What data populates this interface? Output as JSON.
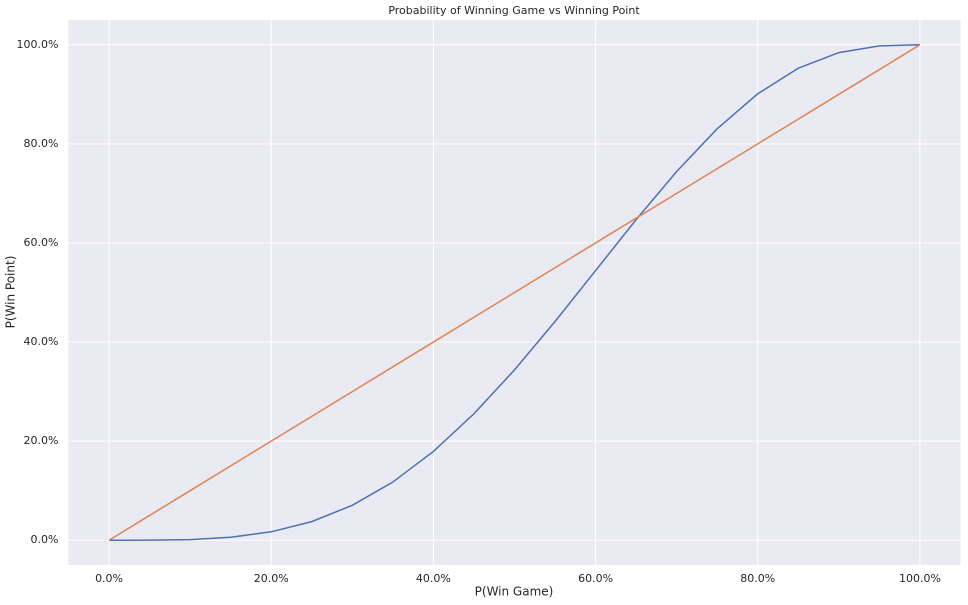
{
  "chart_data": {
    "type": "line",
    "title": "Probability of Winning Game vs Winning Point",
    "x_label": "P(Win Game)",
    "y_label": "P(Win Point)",
    "x": [
      0,
      5,
      10,
      15,
      20,
      25,
      30,
      35,
      40,
      45,
      50,
      55,
      60,
      65,
      70,
      75,
      80,
      85,
      90,
      95,
      100
    ],
    "series": [
      {
        "color": "#4c72b0",
        "values": [
          0,
          0.01,
          0.13,
          0.59,
          1.7,
          3.76,
          7.05,
          11.74,
          17.92,
          25.53,
          34.38,
          44.15,
          54.43,
          64.71,
          74.43,
          83.06,
          90.11,
          95.27,
          98.42,
          99.78,
          100
        ]
      },
      {
        "color": "#dd8452",
        "values": [
          0,
          5,
          10,
          15,
          20,
          25,
          30,
          35,
          40,
          45,
          50,
          55,
          60,
          65,
          70,
          75,
          80,
          85,
          90,
          95,
          100
        ]
      }
    ],
    "xlim": [
      -5,
      105
    ],
    "ylim": [
      -5,
      105
    ],
    "xticks": [
      {
        "value": 0,
        "label": "0.0%"
      },
      {
        "value": 20,
        "label": "20.0%"
      },
      {
        "value": 40,
        "label": "40.0%"
      },
      {
        "value": 60,
        "label": "60.0%"
      },
      {
        "value": 80,
        "label": "80.0%"
      },
      {
        "value": 100,
        "label": "100.0%"
      }
    ],
    "yticks": [
      {
        "value": 0,
        "label": "0.0%"
      },
      {
        "value": 20,
        "label": "20.0%"
      },
      {
        "value": 40,
        "label": "40.0%"
      },
      {
        "value": 60,
        "label": "60.0%"
      },
      {
        "value": 80,
        "label": "80.0%"
      },
      {
        "value": 100,
        "label": "100.0%"
      }
    ],
    "grid": true
  }
}
